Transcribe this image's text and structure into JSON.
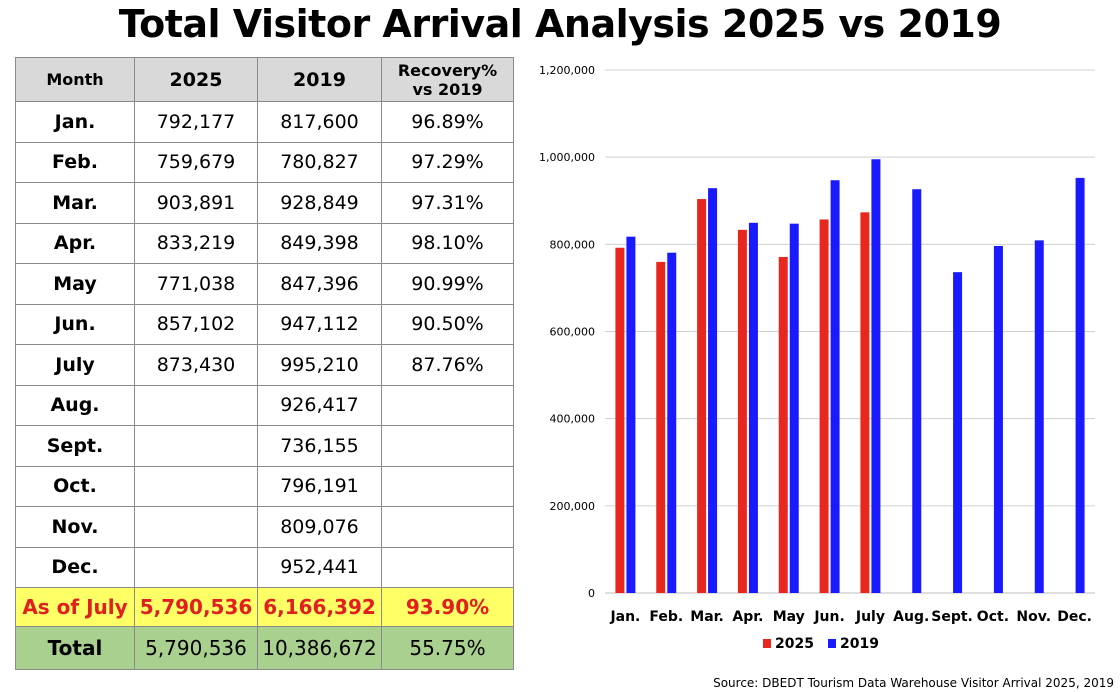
{
  "title": "Total Visitor Arrival Analysis 2025 vs 2019",
  "table": {
    "headers": {
      "month": "Month",
      "y2025": "2025",
      "y2019": "2019",
      "recovery_line1": "Recovery%",
      "recovery_line2": "vs 2019"
    },
    "rows": [
      {
        "month": "Jan.",
        "y2025": "792,177",
        "y2019": "817,600",
        "recovery": "96.89%"
      },
      {
        "month": "Feb.",
        "y2025": "759,679",
        "y2019": "780,827",
        "recovery": "97.29%"
      },
      {
        "month": "Mar.",
        "y2025": "903,891",
        "y2019": "928,849",
        "recovery": "97.31%"
      },
      {
        "month": "Apr.",
        "y2025": "833,219",
        "y2019": "849,398",
        "recovery": "98.10%"
      },
      {
        "month": "May",
        "y2025": "771,038",
        "y2019": "847,396",
        "recovery": "90.99%"
      },
      {
        "month": "Jun.",
        "y2025": "857,102",
        "y2019": "947,112",
        "recovery": "90.50%"
      },
      {
        "month": "July",
        "y2025": "873,430",
        "y2019": "995,210",
        "recovery": "87.76%"
      },
      {
        "month": "Aug.",
        "y2025": "",
        "y2019": "926,417",
        "recovery": ""
      },
      {
        "month": "Sept.",
        "y2025": "",
        "y2019": "736,155",
        "recovery": ""
      },
      {
        "month": "Oct.",
        "y2025": "",
        "y2019": "796,191",
        "recovery": ""
      },
      {
        "month": "Nov.",
        "y2025": "",
        "y2019": "809,076",
        "recovery": ""
      },
      {
        "month": "Dec.",
        "y2025": "",
        "y2019": "952,441",
        "recovery": ""
      }
    ],
    "as_of": {
      "month": "As of July",
      "y2025": "5,790,536",
      "y2019": "6,166,392",
      "recovery": "93.90%"
    },
    "total": {
      "month": "Total",
      "y2025": "5,790,536",
      "y2019": "10,386,672",
      "recovery": "55.75%"
    }
  },
  "chart_data": {
    "type": "bar",
    "categories": [
      "Jan.",
      "Feb.",
      "Mar.",
      "Apr.",
      "May",
      "Jun.",
      "July",
      "Aug.",
      "Sept.",
      "Oct.",
      "Nov.",
      "Dec."
    ],
    "series": [
      {
        "name": "2025",
        "color": "#e8281e",
        "values": [
          792177,
          759679,
          903891,
          833219,
          771038,
          857102,
          873430,
          null,
          null,
          null,
          null,
          null
        ]
      },
      {
        "name": "2019",
        "color": "#1a1aff",
        "values": [
          817600,
          780827,
          928849,
          849398,
          847396,
          947112,
          995210,
          926417,
          736155,
          796191,
          809076,
          952441
        ]
      }
    ],
    "ylim": [
      0,
      1200000
    ],
    "yticks": [
      0,
      200000,
      400000,
      600000,
      800000,
      1000000,
      1200000
    ],
    "ytick_labels": [
      "0",
      "200,000",
      "400,000",
      "600,000",
      "800,000",
      "1,000,000",
      "1,200,000"
    ],
    "grid": true,
    "legend_position": "bottom"
  },
  "source": "Source: DBEDT Tourism Data Warehouse Visitor Arrival 2025, 2019"
}
